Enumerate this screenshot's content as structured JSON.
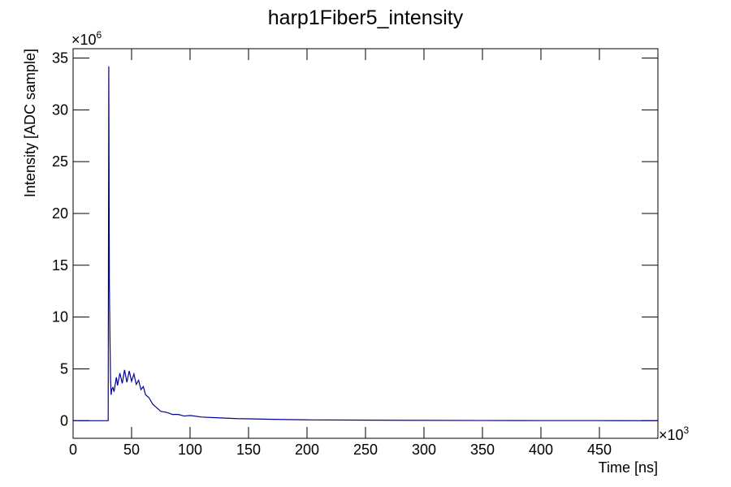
{
  "chart_data": {
    "type": "line",
    "title": "harp1Fiber5_intensity",
    "x_label": "Time [ns]",
    "y_label": "Intensity [ADC sample]",
    "x_multiplier": {
      "base": "×10",
      "exponent": "3"
    },
    "y_multiplier": {
      "base": "×10",
      "exponent": "6"
    },
    "series": [
      {
        "name": "harp1Fiber5_intensity",
        "color": "#000099",
        "x": [
          0,
          30,
          30.5,
          31,
          31.5,
          32,
          32.5,
          33,
          34,
          35,
          36,
          37,
          38,
          40,
          42,
          44,
          46,
          48,
          50,
          52,
          54,
          56,
          58,
          60,
          62,
          65,
          68,
          70,
          75,
          80,
          85,
          90,
          95,
          100,
          110,
          120,
          130,
          140,
          150,
          175,
          200,
          250,
          300,
          350,
          400,
          450,
          500
        ],
        "values": [
          0,
          0,
          34.2,
          13.4,
          8.1,
          4,
          2.5,
          3,
          3.2,
          2.8,
          3.5,
          4.2,
          3.4,
          4.6,
          3.6,
          4.9,
          3.7,
          4.8,
          3.8,
          4.5,
          3.5,
          3.9,
          3.0,
          3.3,
          2.5,
          2.2,
          1.6,
          1.4,
          0.9,
          0.8,
          0.6,
          0.6,
          0.45,
          0.5,
          0.35,
          0.3,
          0.25,
          0.2,
          0.18,
          0.12,
          0.08,
          0.05,
          0.03,
          0.02,
          0.01,
          0.01,
          0
        ]
      }
    ],
    "xlim": [
      0,
      500
    ],
    "xticks": [
      0,
      50,
      100,
      150,
      200,
      250,
      300,
      350,
      400,
      450
    ],
    "ylim": [
      -1.7,
      35.9
    ],
    "yticks": [
      0,
      5,
      10,
      15,
      20,
      25,
      30,
      35
    ],
    "grid": false
  }
}
